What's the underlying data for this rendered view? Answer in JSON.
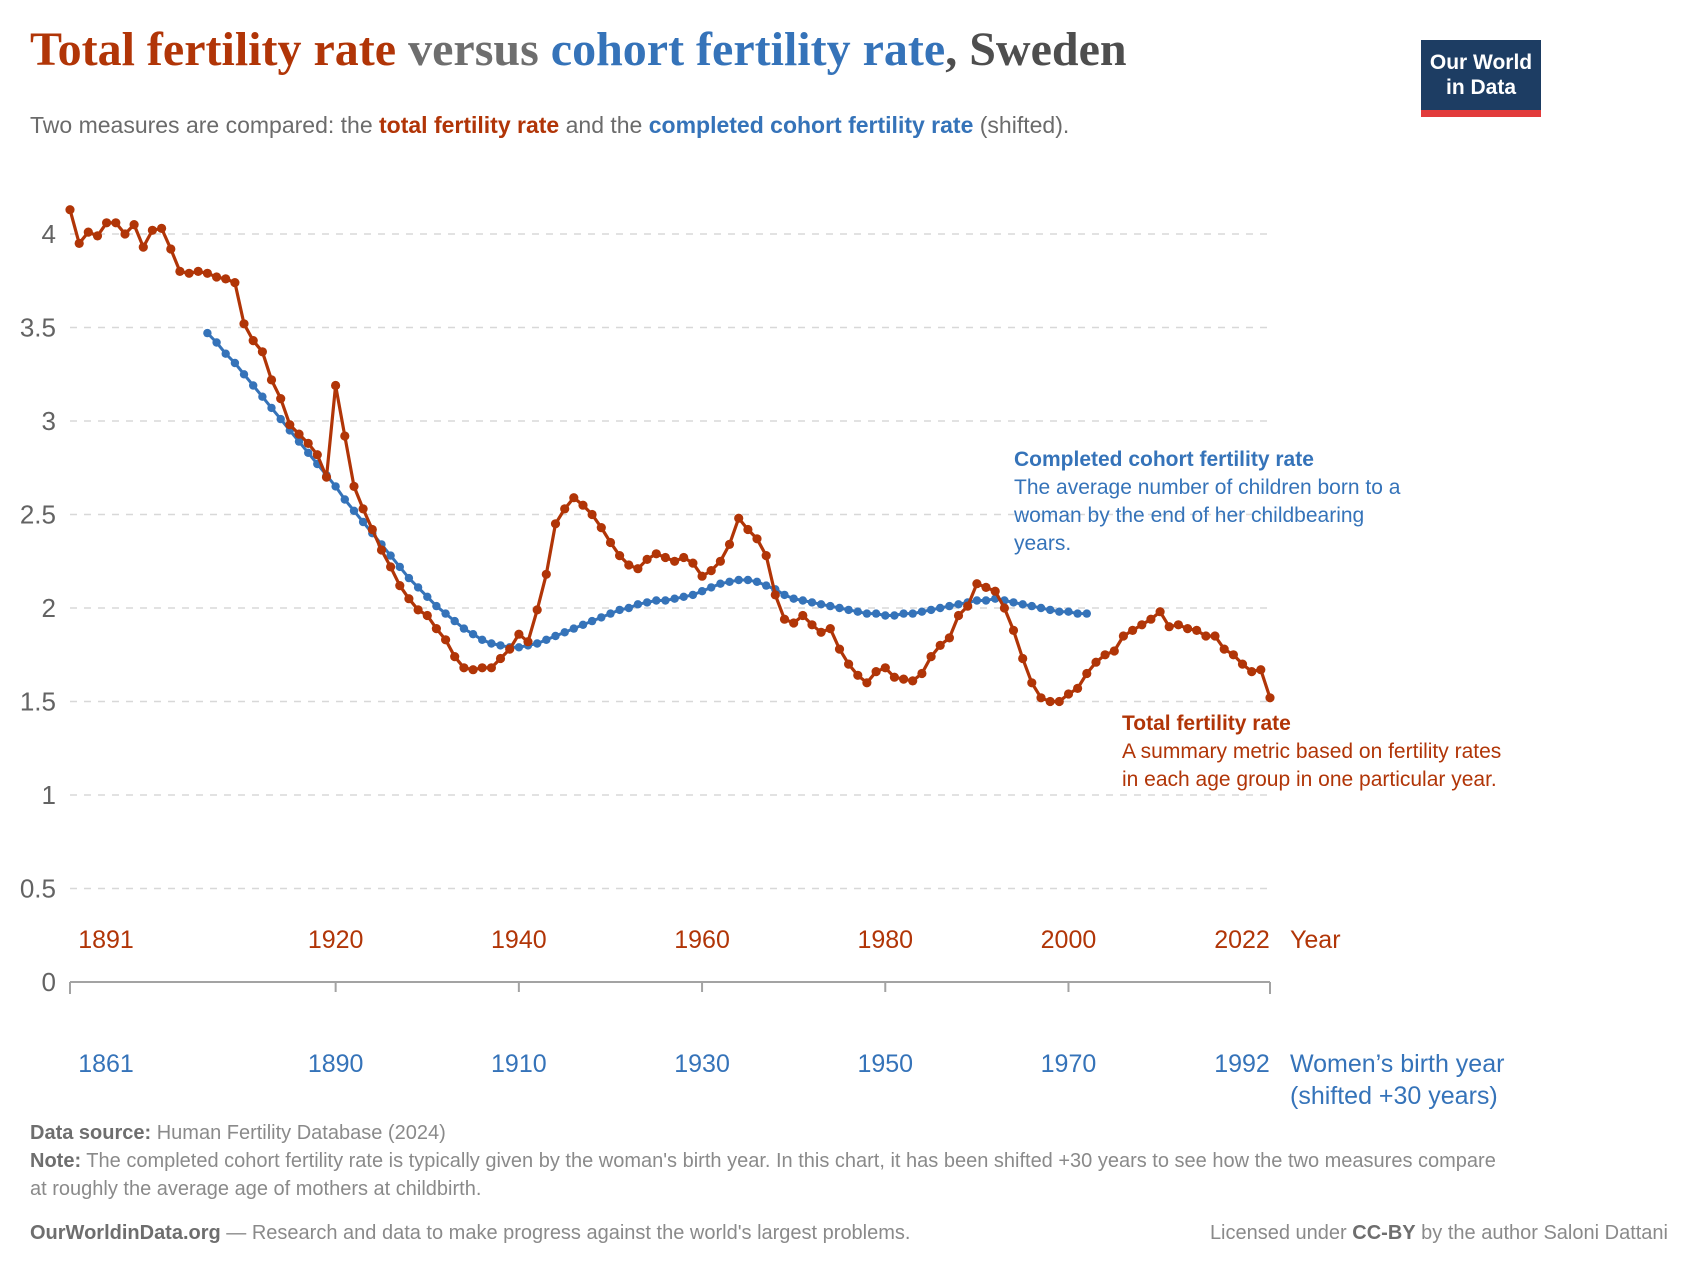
{
  "header": {
    "title_red": "Total fertility rate",
    "title_mid": " versus ",
    "title_blue": "cohort fertility rate",
    "title_end": ", Sweden",
    "subtitle_pre": "Two measures are compared: the ",
    "subtitle_red": "total fertility rate",
    "subtitle_mid": " and the ",
    "subtitle_blue": "completed cohort fertility rate",
    "subtitle_post": " (shifted)."
  },
  "logo": {
    "line1": "Our World",
    "line2": "in Data",
    "bg_color": "#1d3d63",
    "stripe_color": "#e23b3b"
  },
  "colors": {
    "tfr_red": "#b13507",
    "cohort_blue": "#3573b9",
    "grid": "#d8d8d8",
    "axis": "#a3a3a3",
    "y_tick_label": "#636363"
  },
  "chart_data": {
    "type": "line",
    "title": "Total fertility rate versus cohort fertility rate, Sweden",
    "ylabel": "",
    "ylim": [
      0,
      4.25
    ],
    "yticks": [
      0,
      0.5,
      1,
      1.5,
      2,
      2.5,
      3,
      3.5,
      4
    ],
    "grid": true,
    "legend_position": "inline-annotations",
    "x_axis": {
      "red_label": "Year",
      "red_ticks": [
        "1891",
        "1920",
        "1940",
        "1960",
        "1980",
        "2000",
        "2022"
      ],
      "blue_ticks": [
        "1861",
        "1890",
        "1910",
        "1930",
        "1950",
        "1970",
        "1992"
      ],
      "blue_label_line1": "Women’s birth year",
      "blue_label_line2": "(shifted +30 years)"
    },
    "series": [
      {
        "name": "Completed cohort fertility rate",
        "color": "#3573b9",
        "start_birth_year": 1876,
        "end_birth_year": 1972,
        "shift_years": 30,
        "values": [
          3.47,
          3.42,
          3.36,
          3.31,
          3.25,
          3.19,
          3.13,
          3.07,
          3.01,
          2.95,
          2.89,
          2.83,
          2.77,
          2.71,
          2.65,
          2.58,
          2.52,
          2.46,
          2.4,
          2.34,
          2.28,
          2.22,
          2.16,
          2.11,
          2.06,
          2.01,
          1.97,
          1.93,
          1.89,
          1.86,
          1.83,
          1.81,
          1.8,
          1.79,
          1.79,
          1.8,
          1.81,
          1.83,
          1.85,
          1.87,
          1.89,
          1.91,
          1.93,
          1.95,
          1.97,
          1.99,
          2.0,
          2.02,
          2.03,
          2.04,
          2.04,
          2.05,
          2.06,
          2.07,
          2.09,
          2.11,
          2.13,
          2.14,
          2.15,
          2.15,
          2.14,
          2.12,
          2.1,
          2.07,
          2.05,
          2.04,
          2.03,
          2.02,
          2.01,
          2.0,
          1.99,
          1.98,
          1.97,
          1.97,
          1.96,
          1.96,
          1.97,
          1.97,
          1.98,
          1.99,
          2.0,
          2.01,
          2.02,
          2.03,
          2.04,
          2.04,
          2.05,
          2.04,
          2.03,
          2.02,
          2.01,
          2.0,
          1.99,
          1.98,
          1.98,
          1.97,
          1.97
        ]
      },
      {
        "name": "Total fertility rate",
        "color": "#b13507",
        "start_year": 1891,
        "end_year": 2022,
        "values": [
          4.13,
          3.95,
          4.01,
          3.99,
          4.06,
          4.06,
          4.0,
          4.05,
          3.93,
          4.02,
          4.03,
          3.92,
          3.8,
          3.79,
          3.8,
          3.79,
          3.77,
          3.76,
          3.74,
          3.52,
          3.43,
          3.37,
          3.22,
          3.12,
          2.98,
          2.93,
          2.88,
          2.82,
          2.7,
          3.19,
          2.92,
          2.65,
          2.53,
          2.42,
          2.31,
          2.22,
          2.12,
          2.05,
          1.99,
          1.96,
          1.89,
          1.83,
          1.74,
          1.68,
          1.67,
          1.68,
          1.68,
          1.73,
          1.78,
          1.86,
          1.82,
          1.99,
          2.18,
          2.45,
          2.53,
          2.59,
          2.55,
          2.5,
          2.43,
          2.35,
          2.28,
          2.23,
          2.21,
          2.26,
          2.29,
          2.27,
          2.25,
          2.27,
          2.24,
          2.17,
          2.2,
          2.25,
          2.34,
          2.48,
          2.42,
          2.37,
          2.28,
          2.07,
          1.94,
          1.92,
          1.96,
          1.91,
          1.87,
          1.89,
          1.78,
          1.7,
          1.64,
          1.6,
          1.66,
          1.68,
          1.63,
          1.62,
          1.61,
          1.65,
          1.74,
          1.8,
          1.84,
          1.96,
          2.01,
          2.13,
          2.11,
          2.09,
          2.0,
          1.88,
          1.73,
          1.6,
          1.52,
          1.5,
          1.5,
          1.54,
          1.57,
          1.65,
          1.71,
          1.75,
          1.77,
          1.85,
          1.88,
          1.91,
          1.94,
          1.98,
          1.9,
          1.91,
          1.89,
          1.88,
          1.85,
          1.85,
          1.78,
          1.75,
          1.7,
          1.66,
          1.67,
          1.52
        ]
      }
    ]
  },
  "annotations": {
    "cohort": {
      "title": "Completed cohort fertility rate",
      "description": "The average number of children born to a woman by the end of her childbearing years."
    },
    "tfr": {
      "title": "Total fertility rate",
      "description": "A summary metric based on fertility rates in each age group in one particular year."
    }
  },
  "footer": {
    "source_label": "Data source:",
    "source_value": " Human Fertility Database (2024)",
    "note_label": "Note:",
    "note_text": " The completed cohort fertility rate is typically given by the woman's birth year. In this chart, it has been shifted +30 years to see how the two measures compare at roughly the average age of mothers at childbirth.",
    "site": "OurWorldinData.org",
    "tagline": " — Research and data to make progress against the world's largest problems.",
    "license_pre": "Licensed under ",
    "license_bold": "CC-BY",
    "license_post": " by the author Saloni Dattani"
  }
}
